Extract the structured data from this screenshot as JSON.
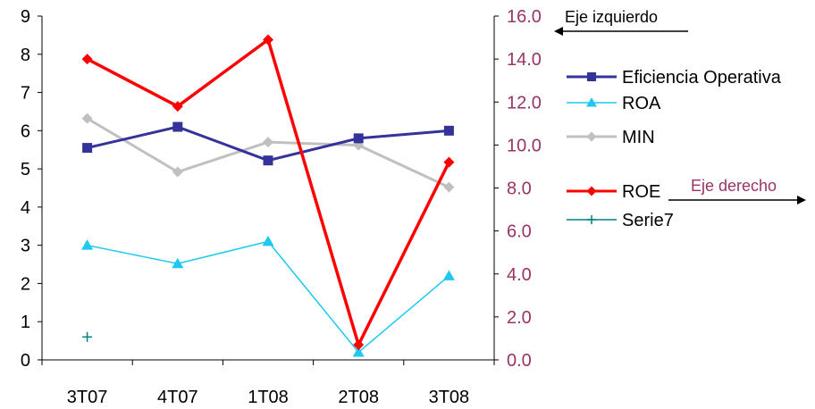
{
  "chart_data": {
    "type": "line",
    "categories": [
      "3T07",
      "4T07",
      "1T08",
      "2T08",
      "3T08"
    ],
    "y_left": {
      "ylim": [
        0,
        9
      ],
      "ticks": [
        "0",
        "1",
        "2",
        "3",
        "4",
        "5",
        "6",
        "7",
        "8",
        "9"
      ]
    },
    "y_right": {
      "ylim": [
        0,
        16
      ],
      "ticks": [
        "0.0",
        "2.0",
        "4.0",
        "6.0",
        "8.0",
        "10.0",
        "12.0",
        "14.0",
        "16.0"
      ],
      "color": "#993366"
    },
    "series": [
      {
        "name": "Eficiencia Operativa",
        "axis": "left",
        "color": "#333399",
        "marker": "square",
        "values": [
          5.55,
          6.1,
          5.22,
          5.8,
          6.0
        ]
      },
      {
        "name": "ROA",
        "axis": "left",
        "color": "#1ec8f0",
        "marker": "triangle",
        "values": [
          3.0,
          2.52,
          3.1,
          0.2,
          2.2
        ]
      },
      {
        "name": "MIN",
        "axis": "left",
        "color": "#c0c0c0",
        "marker": "diamond",
        "values": [
          6.32,
          4.92,
          5.7,
          5.62,
          4.52
        ]
      },
      {
        "name": "ROE",
        "axis": "right",
        "color": "#ff0000",
        "marker": "diamond",
        "values": [
          14.0,
          11.8,
          14.9,
          0.7,
          9.2
        ]
      },
      {
        "name": "Serie7",
        "axis": "left",
        "color": "#008080",
        "marker": "plus",
        "values": [
          0.6,
          null,
          null,
          null,
          null
        ]
      }
    ],
    "annotations": [
      {
        "text": "Eje izquierdo",
        "direction": "left"
      },
      {
        "text": "Eje derecho",
        "direction": "right"
      }
    ],
    "grid": false,
    "legend_position": "right"
  }
}
